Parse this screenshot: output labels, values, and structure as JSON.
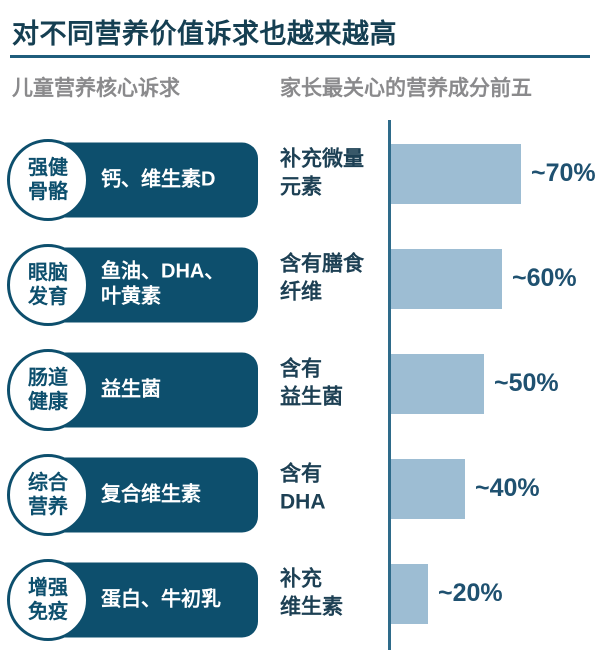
{
  "page": {
    "title": "对不同营养价值诉求也越来越高"
  },
  "headers": {
    "left": "儿童营养核心诉求",
    "right": "家长最关心的营养成分前五"
  },
  "rows": [
    {
      "circle": "强健\n骨骼",
      "pill": "钙、维生素D",
      "bar_label": "补充微量\n元素",
      "percent": "~70%"
    },
    {
      "circle": "眼脑\n发育",
      "pill": "鱼油、DHA、\n叶黄素",
      "bar_label": "含有膳食\n纤维",
      "percent": "~60%"
    },
    {
      "circle": "肠道\n健康",
      "pill": "益生菌",
      "bar_label": "含有\n益生菌",
      "percent": "~50%"
    },
    {
      "circle": "综合\n营养",
      "pill": "复合维生素",
      "bar_label": "含有\nDHA",
      "percent": "~40%"
    },
    {
      "circle": "增强\n免疫",
      "pill": "蛋白、牛初乳",
      "bar_label": "补充\n维生素",
      "percent": "~20%"
    }
  ],
  "chart_data": {
    "type": "bar",
    "orientation": "horizontal",
    "title": "家长最关心的营养成分前五",
    "categories": [
      "补充微量元素",
      "含有膳食纤维",
      "含有益生菌",
      "含有DHA",
      "补充维生素"
    ],
    "values": [
      70,
      60,
      50,
      40,
      20
    ],
    "value_labels": [
      "~70%",
      "~60%",
      "~50%",
      "~40%",
      "~20%"
    ],
    "xlabel": "",
    "ylabel": "",
    "xlim": [
      0,
      100
    ],
    "grid": false,
    "legend": false,
    "bar_color": "#9dbdd3",
    "axis_line": true
  },
  "colors": {
    "dark_teal": "#0d4f6d",
    "bar_fill": "#9dbdd3",
    "title_text": "#153f52",
    "header_gray": "#8a8a8c",
    "label_text": "#1d4054",
    "percent_text": "#1f5170",
    "axis": "#2e6b8a",
    "rule": "#1f5d7c"
  }
}
